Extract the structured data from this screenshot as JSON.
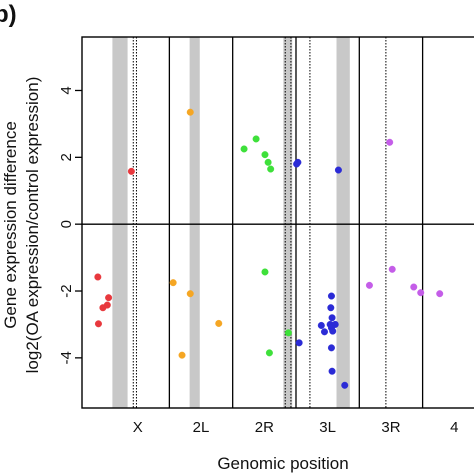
{
  "chart_data": {
    "type": "scatter",
    "panel_label": "b)",
    "ylabel_line1": "Gene expression difference",
    "ylabel_line2": "log2(OA expression/control expression)",
    "xlabel": "Genomic position",
    "y_ticks": [
      -4,
      -2,
      0,
      2,
      4
    ],
    "ylim": [
      -5.5,
      5.6
    ],
    "x_categories": [
      "X",
      "2L",
      "2R",
      "3L",
      "3R",
      "4"
    ],
    "region_boundaries": [
      1.0,
      2.0,
      3.0,
      4.0,
      5.0
    ],
    "gray_bands": [
      [
        0.1,
        0.34
      ],
      [
        1.32,
        1.48
      ],
      [
        2.8,
        2.94
      ],
      [
        3.64,
        3.85
      ]
    ],
    "dotted_lines": [
      0.43,
      0.48,
      2.83,
      2.92,
      3.22,
      4.42,
      5.93,
      5.99
    ],
    "colors": {
      "X": "#e8383d",
      "2L": "#f5a623",
      "2R": "#3ee03a",
      "3L": "#2b2bd6",
      "3R": "#c45de8"
    },
    "series": [
      {
        "region": "X",
        "points": [
          [
            0.4,
            1.58
          ],
          [
            -0.13,
            -1.58
          ],
          [
            -0.05,
            -2.5
          ],
          [
            0.04,
            -2.2
          ],
          [
            0.02,
            -2.42
          ],
          [
            -0.12,
            -2.98
          ]
        ]
      },
      {
        "region": "2L",
        "points": [
          [
            1.33,
            3.35
          ],
          [
            1.06,
            -1.75
          ],
          [
            1.33,
            -2.08
          ],
          [
            1.78,
            -2.97
          ],
          [
            1.2,
            -3.92
          ]
        ]
      },
      {
        "region": "2R",
        "points": [
          [
            2.18,
            2.25
          ],
          [
            2.37,
            2.55
          ],
          [
            2.51,
            2.08
          ],
          [
            2.56,
            1.85
          ],
          [
            2.6,
            1.65
          ],
          [
            2.51,
            -1.43
          ],
          [
            2.58,
            -3.85
          ],
          [
            2.88,
            -3.25
          ]
        ]
      },
      {
        "region": "3L",
        "points": [
          [
            3.03,
            1.85
          ],
          [
            3.01,
            1.8
          ],
          [
            3.67,
            1.62
          ],
          [
            3.05,
            -3.55
          ],
          [
            3.4,
            -3.03
          ],
          [
            3.45,
            -3.22
          ],
          [
            3.56,
            -2.15
          ],
          [
            3.55,
            -2.5
          ],
          [
            3.57,
            -2.8
          ],
          [
            3.54,
            -3.0
          ],
          [
            3.56,
            -3.1
          ],
          [
            3.58,
            -3.2
          ],
          [
            3.56,
            -3.7
          ],
          [
            3.57,
            -4.4
          ],
          [
            3.77,
            -4.82
          ],
          [
            3.62,
            -3.0
          ]
        ]
      },
      {
        "region": "3R",
        "points": [
          [
            4.48,
            2.45
          ],
          [
            4.16,
            -1.83
          ],
          [
            4.52,
            -1.35
          ],
          [
            4.86,
            -1.88
          ],
          [
            4.97,
            -2.05
          ],
          [
            5.27,
            -2.08
          ]
        ]
      }
    ]
  }
}
